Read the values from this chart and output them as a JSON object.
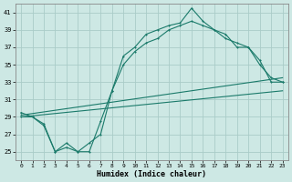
{
  "xlabel": "Humidex (Indice chaleur)",
  "bg_color": "#cde8e4",
  "grid_color": "#aaccc8",
  "line_color": "#1a7a6a",
  "x_ticks": [
    0,
    1,
    2,
    3,
    4,
    5,
    6,
    7,
    8,
    9,
    10,
    11,
    12,
    13,
    14,
    15,
    16,
    17,
    18,
    19,
    20,
    21,
    22,
    23
  ],
  "y_ticks": [
    25,
    27,
    29,
    31,
    33,
    35,
    37,
    39,
    41
  ],
  "ylim": [
    24.0,
    42.0
  ],
  "xlim": [
    -0.5,
    23.5
  ],
  "line1_x": [
    0,
    1,
    2,
    3,
    4,
    5,
    6,
    7,
    8,
    9,
    10,
    11,
    12,
    13,
    14,
    15,
    16,
    17,
    18,
    19,
    20,
    21,
    22,
    23
  ],
  "line1_y": [
    29.5,
    29.0,
    28.2,
    25.0,
    25.5,
    25.0,
    25.0,
    28.5,
    32.0,
    36.0,
    37.0,
    38.5,
    39.0,
    39.5,
    39.8,
    41.5,
    40.0,
    39.0,
    38.5,
    37.0,
    37.0,
    35.5,
    33.0,
    33.0
  ],
  "line2_x": [
    0,
    1,
    2,
    3,
    4,
    5,
    6,
    7,
    8,
    9,
    10,
    11,
    12,
    13,
    14,
    15,
    16,
    17,
    18,
    19,
    20,
    21,
    22,
    23
  ],
  "line2_y": [
    29.0,
    29.0,
    28.0,
    25.0,
    26.0,
    25.0,
    26.0,
    27.0,
    32.0,
    35.0,
    36.5,
    37.5,
    38.0,
    39.0,
    39.5,
    40.0,
    39.5,
    39.0,
    38.0,
    37.5,
    37.0,
    35.0,
    33.5,
    33.0
  ],
  "line3_x": [
    0,
    23
  ],
  "line3_y": [
    29.2,
    33.5
  ],
  "line4_x": [
    0,
    23
  ],
  "line4_y": [
    29.0,
    32.0
  ]
}
